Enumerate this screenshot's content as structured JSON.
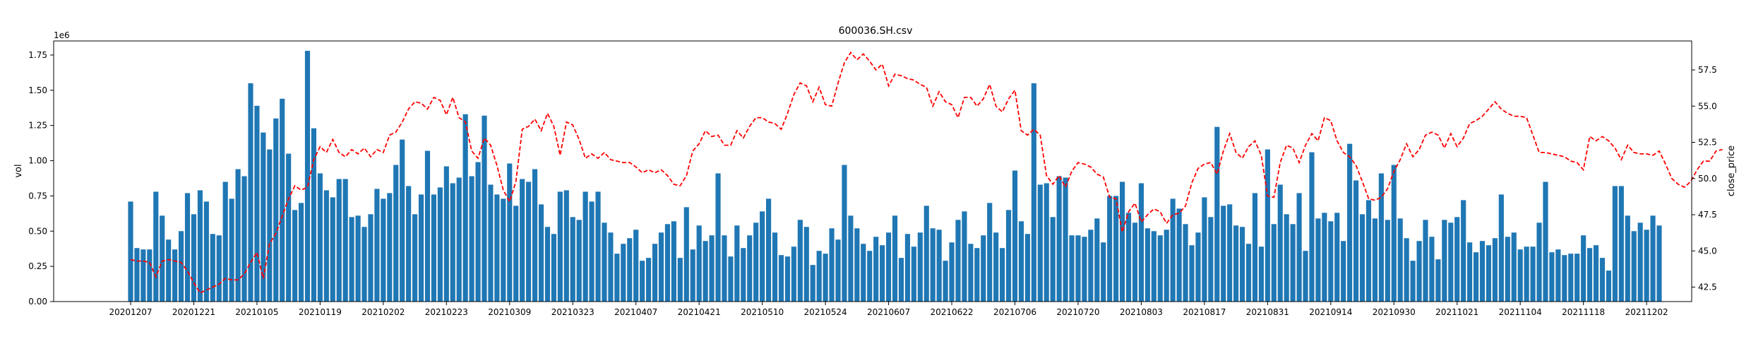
{
  "chart_data": {
    "type": "bar+line",
    "title": "600036.SH.csv",
    "ylabel_left": "vol",
    "ylabel_right": "close_price",
    "left_multiplier": "1e6",
    "ylim_left": [
      0,
      1.85
    ],
    "ylim_right": [
      41.5,
      59.5
    ],
    "left_ticks": [
      "0.00",
      "0.25",
      "0.50",
      "0.75",
      "1.00",
      "1.25",
      "1.50",
      "1.75"
    ],
    "right_ticks": [
      "42.5",
      "45.0",
      "47.5",
      "50.0",
      "52.5",
      "55.0",
      "57.5"
    ],
    "x_ticks": [
      {
        "label": "20201207",
        "i": 0
      },
      {
        "label": "20201221",
        "i": 10
      },
      {
        "label": "20210105",
        "i": 20
      },
      {
        "label": "20210119",
        "i": 30
      },
      {
        "label": "20210202",
        "i": 40
      },
      {
        "label": "20210223",
        "i": 50
      },
      {
        "label": "20210309",
        "i": 60
      },
      {
        "label": "20210323",
        "i": 70
      },
      {
        "label": "20210407",
        "i": 80
      },
      {
        "label": "20210421",
        "i": 90
      },
      {
        "label": "20210510",
        "i": 100
      },
      {
        "label": "20210524",
        "i": 110
      },
      {
        "label": "20210607",
        "i": 120
      },
      {
        "label": "20210622",
        "i": 130
      },
      {
        "label": "20210706",
        "i": 140
      },
      {
        "label": "20210720",
        "i": 150
      },
      {
        "label": "20210803",
        "i": 160
      },
      {
        "label": "20210817",
        "i": 170
      },
      {
        "label": "20210831",
        "i": 180
      },
      {
        "label": "20210914",
        "i": 190
      },
      {
        "label": "20210930",
        "i": 200
      },
      {
        "label": "20211021",
        "i": 210
      },
      {
        "label": "20211104",
        "i": 220
      },
      {
        "label": "20211118",
        "i": 230
      },
      {
        "label": "20211202",
        "i": 240
      }
    ],
    "series": [
      {
        "name": "vol",
        "kind": "bar",
        "color": "#1f77b4",
        "values": [
          0.71,
          0.38,
          0.37,
          0.37,
          0.78,
          0.61,
          0.44,
          0.37,
          0.5,
          0.77,
          0.62,
          0.79,
          0.71,
          0.48,
          0.47,
          0.85,
          0.73,
          0.94,
          0.89,
          1.55,
          1.39,
          1.2,
          1.08,
          1.3,
          1.44,
          1.05,
          0.65,
          0.7,
          1.78,
          1.23,
          0.91,
          0.79,
          0.74,
          0.87,
          0.87,
          0.6,
          0.61,
          0.53,
          0.62,
          0.8,
          0.73,
          0.77,
          0.97,
          1.15,
          0.82,
          0.62,
          0.76,
          1.07,
          0.76,
          0.81,
          0.96,
          0.84,
          0.88,
          1.33,
          0.89,
          0.99,
          1.32,
          0.83,
          0.76,
          0.73,
          0.98,
          0.68,
          0.87,
          0.85,
          0.94,
          0.69,
          0.53,
          0.48,
          0.78,
          0.79,
          0.6,
          0.58,
          0.78,
          0.71,
          0.78,
          0.56,
          0.49,
          0.34,
          0.41,
          0.45,
          0.51,
          0.29,
          0.31,
          0.41,
          0.49,
          0.55,
          0.57,
          0.31,
          0.67,
          0.37,
          0.54,
          0.43,
          0.47,
          0.91,
          0.47,
          0.32,
          0.54,
          0.38,
          0.47,
          0.56,
          0.64,
          0.73,
          0.49,
          0.33,
          0.32,
          0.39,
          0.58,
          0.53,
          0.26,
          0.36,
          0.34,
          0.52,
          0.44,
          0.97,
          0.61,
          0.52,
          0.41,
          0.36,
          0.46,
          0.4,
          0.49,
          0.61,
          0.31,
          0.48,
          0.39,
          0.49,
          0.68,
          0.52,
          0.51,
          0.29,
          0.42,
          0.58,
          0.64,
          0.41,
          0.38,
          0.47,
          0.7,
          0.49,
          0.38,
          0.65,
          0.93,
          0.57,
          0.48,
          1.55,
          0.83,
          0.84,
          0.6,
          0.89,
          0.88,
          0.47,
          0.47,
          0.46,
          0.51,
          0.59,
          0.42,
          0.75,
          0.75,
          0.85,
          0.63,
          0.56,
          0.84,
          0.52,
          0.5,
          0.47,
          0.51,
          0.73,
          0.66,
          0.55,
          0.4,
          0.49,
          0.74,
          0.6,
          1.24,
          0.68,
          0.69,
          0.54,
          0.53,
          0.41,
          0.77,
          0.39,
          1.08,
          0.55,
          0.83,
          0.62,
          0.55,
          0.77,
          0.36,
          1.06,
          0.59,
          0.63,
          0.57,
          0.63,
          0.43,
          1.12,
          0.86,
          0.62,
          0.72,
          0.59,
          0.91,
          0.58,
          0.97,
          0.59,
          0.45,
          0.29,
          0.43,
          0.58,
          0.46,
          0.3,
          0.58,
          0.56,
          0.6,
          0.72,
          0.42,
          0.35,
          0.43,
          0.4,
          0.45,
          0.76,
          0.46,
          0.49,
          0.37,
          0.39,
          0.39,
          0.56,
          0.85,
          0.35,
          0.37,
          0.33,
          0.34,
          0.34,
          0.47,
          0.38,
          0.4,
          0.31,
          0.22,
          0.82,
          0.82,
          0.61,
          0.5,
          0.56,
          0.51,
          0.61,
          0.54
        ]
      },
      {
        "name": "close_price",
        "kind": "line",
        "color": "#ff0000",
        "values": [
          44.4,
          44.3,
          44.3,
          44.2,
          43.2,
          44.3,
          44.4,
          44.3,
          44.2,
          43.6,
          42.8,
          42.1,
          42.3,
          42.5,
          42.7,
          43.1,
          43.0,
          43.0,
          43.4,
          44.2,
          44.9,
          43.1,
          45.5,
          46.2,
          47.4,
          48.6,
          49.5,
          49.2,
          49.4,
          51.3,
          52.2,
          51.8,
          52.7,
          51.8,
          51.5,
          52.0,
          51.7,
          52.1,
          51.5,
          52.0,
          51.8,
          53.0,
          53.2,
          53.9,
          54.8,
          55.3,
          55.2,
          54.8,
          55.6,
          55.4,
          54.4,
          55.6,
          54.2,
          53.9,
          51.9,
          51.4,
          52.8,
          52.3,
          50.9,
          49.2,
          48.4,
          49.8,
          53.4,
          53.6,
          54.1,
          53.3,
          54.5,
          53.6,
          51.6,
          53.9,
          53.7,
          52.7,
          51.4,
          51.7,
          51.4,
          51.8,
          51.3,
          51.2,
          51.1,
          51.1,
          50.8,
          50.4,
          50.6,
          50.4,
          50.6,
          50.2,
          49.6,
          49.5,
          50.2,
          51.9,
          52.4,
          53.3,
          52.9,
          53.0,
          52.3,
          52.3,
          53.3,
          52.8,
          53.6,
          54.2,
          54.2,
          53.9,
          53.8,
          53.4,
          54.5,
          55.8,
          56.6,
          56.4,
          55.3,
          56.3,
          55.1,
          55.0,
          56.6,
          58.0,
          58.7,
          58.2,
          58.6,
          58.1,
          57.5,
          57.9,
          56.4,
          57.2,
          57.1,
          56.9,
          56.8,
          56.5,
          56.3,
          55.0,
          56.0,
          55.3,
          55.1,
          54.2,
          55.6,
          55.6,
          55.0,
          55.5,
          56.5,
          55.0,
          54.6,
          55.5,
          56.1,
          53.3,
          53.0,
          53.4,
          53.0,
          50.2,
          49.6,
          50.2,
          49.4,
          50.5,
          51.1,
          51.0,
          50.8,
          50.3,
          50.1,
          48.7,
          48.6,
          46.3,
          47.7,
          48.3,
          47.0,
          47.5,
          47.9,
          47.7,
          46.9,
          47.5,
          47.6,
          48.1,
          49.7,
          50.7,
          51.0,
          51.1,
          50.3,
          51.9,
          53.1,
          51.8,
          51.4,
          52.2,
          52.6,
          51.6,
          48.8,
          48.7,
          51.1,
          52.3,
          52.1,
          51.1,
          52.3,
          53.1,
          52.6,
          54.2,
          54.0,
          52.6,
          51.8,
          51.5,
          50.9,
          49.8,
          48.6,
          48.5,
          48.7,
          49.3,
          50.5,
          51.3,
          52.4,
          51.5,
          52.0,
          53.0,
          53.2,
          53.0,
          52.1,
          53.1,
          52.2,
          52.8,
          53.8,
          54.0,
          54.3,
          54.8,
          55.3,
          54.8,
          54.5,
          54.3,
          54.3,
          54.2,
          53.0,
          51.8,
          51.8,
          51.7,
          51.6,
          51.5,
          51.2,
          51.1,
          50.6,
          52.9,
          52.6,
          52.9,
          52.6,
          52.1,
          51.3,
          52.3,
          51.8,
          51.7,
          51.7,
          51.6,
          51.9,
          51.0,
          50.0,
          49.6,
          49.4,
          49.8,
          50.6,
          51.2,
          51.2,
          51.9,
          52.0
        ]
      }
    ],
    "grid": false,
    "legend": "none"
  }
}
